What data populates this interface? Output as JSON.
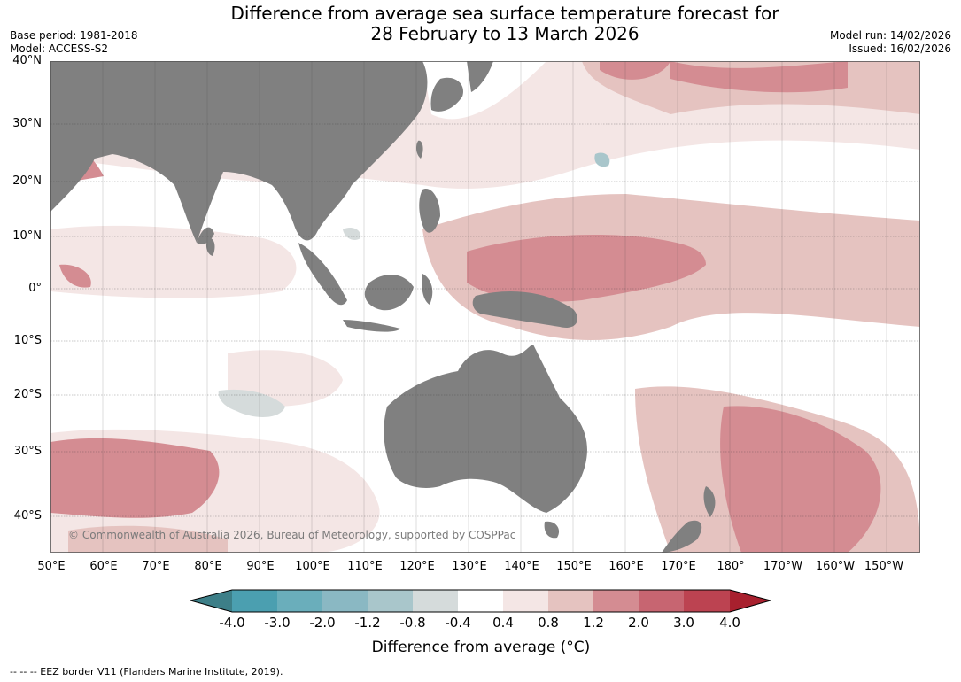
{
  "header": {
    "title_line1": "Difference from average sea surface temperature forecast for",
    "title_line2": "28 February to 13 March 2026",
    "base_period": "Base period: 1981-2018",
    "model": "Model: ACCESS-S2",
    "model_run": "Model run: 14/02/2026",
    "issued": "Issued: 16/02/2026"
  },
  "map": {
    "lat_labels": [
      "40°N",
      "30°N",
      "20°N",
      "10°N",
      "0°",
      "10°S",
      "20°S",
      "30°S",
      "40°S"
    ],
    "lon_labels": [
      "50°E",
      "60°E",
      "70°E",
      "80°E",
      "90°E",
      "100°E",
      "110°E",
      "120°E",
      "130°E",
      "140°E",
      "150°E",
      "160°E",
      "170°E",
      "180°",
      "170°W",
      "160°W",
      "150°W"
    ],
    "copyright": "© Commonwealth of Australia 2026, Bureau of Meteorology, supported by COSPPac",
    "land_color": "#808080",
    "ocean_color": "#ffffff"
  },
  "colorbar": {
    "ticks": [
      "-4.0",
      "-3.0",
      "-2.0",
      "-1.2",
      "-0.8",
      "-0.4",
      "0.4",
      "0.8",
      "1.2",
      "2.0",
      "3.0",
      "4.0"
    ],
    "colors": [
      "#3d7f88",
      "#4b9fb0",
      "#6aaebb",
      "#8ab8c3",
      "#a9c6cb",
      "#d5dbdb",
      "#ffffff",
      "#f4e6e5",
      "#e5c3c0",
      "#d48c92",
      "#c76571",
      "#bc4351",
      "#a8202e"
    ],
    "label": "Difference from average (°C)"
  },
  "footer": {
    "eez_note": "--  --  -- EEZ border V11 (Flanders Marine Institute, 2019)."
  }
}
